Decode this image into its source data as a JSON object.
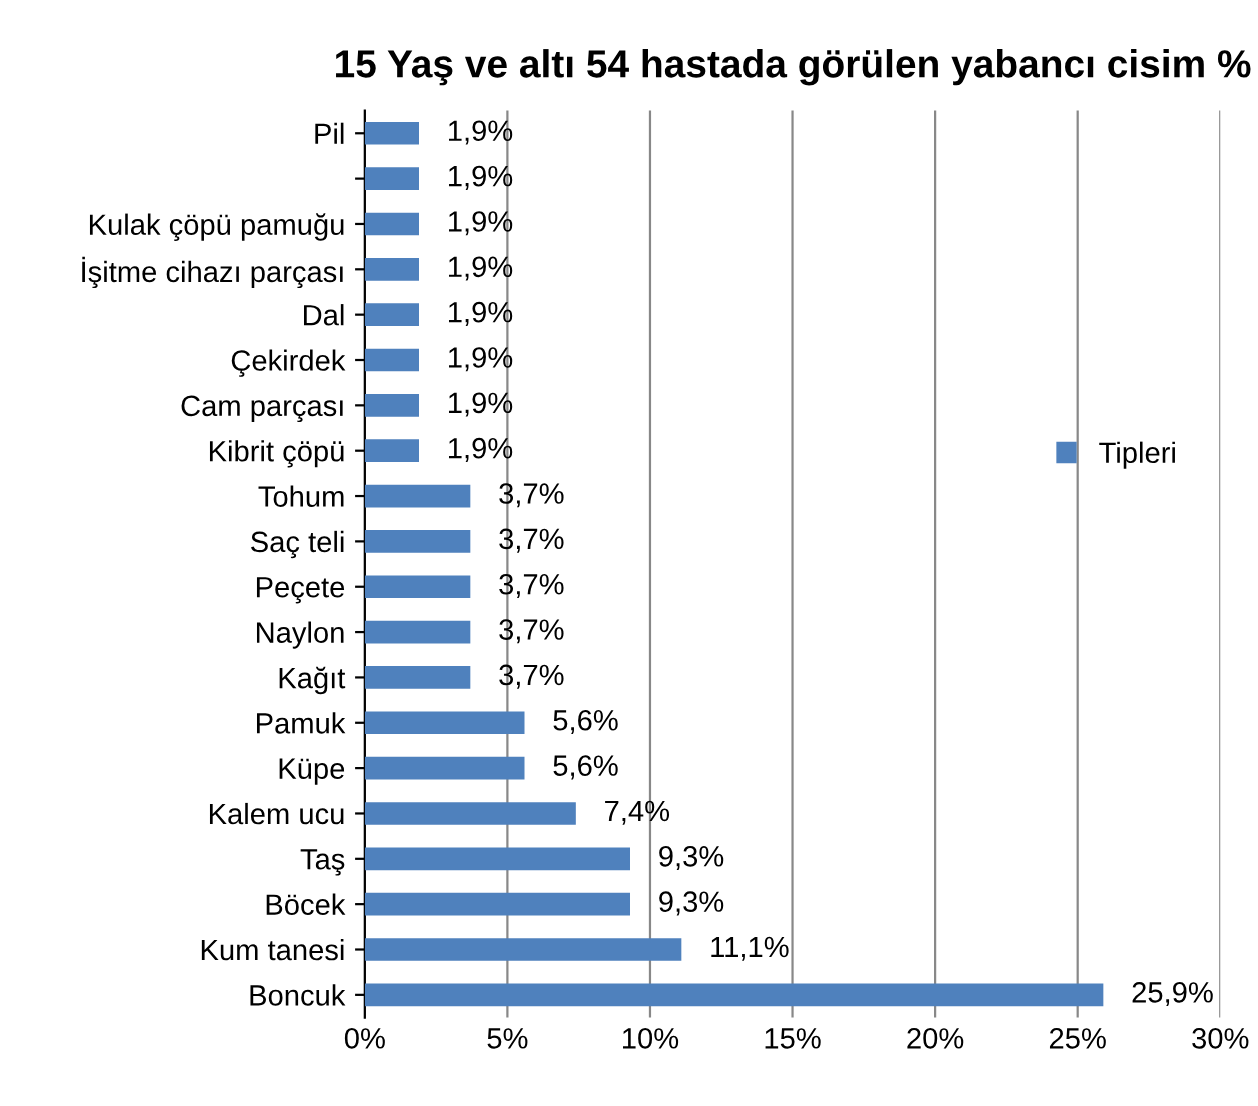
{
  "chart_data": {
    "type": "bar",
    "orientation": "horizontal",
    "title": "15 Yaş ve altı 54 hastada görülen yabancı cisim %",
    "categories": [
      "Pil",
      null,
      "Kulak çöpü pamuğu",
      "İşitme cihazı parçası",
      "Dal",
      "Çekirdek",
      "Cam parçası",
      "Kibrit çöpü",
      "Tohum",
      "Saç teli",
      "Peçete",
      "Naylon",
      "Kağıt",
      "Pamuk",
      "Küpe",
      "Kalem ucu",
      "Taş",
      "Böcek",
      "Kum tanesi",
      "Boncuk"
    ],
    "series": [
      {
        "name": "Tipleri",
        "color": "#4f81bd",
        "values": [
          1.9,
          1.9,
          1.9,
          1.9,
          1.9,
          1.9,
          1.9,
          1.9,
          3.7,
          3.7,
          3.7,
          3.7,
          3.7,
          5.6,
          5.6,
          7.4,
          9.3,
          9.3,
          11.1,
          25.9
        ],
        "value_labels": [
          "1,9%",
          "1,9%",
          "1,9%",
          "1,9%",
          "1,9%",
          "1,9%",
          "1,9%",
          "1,9%",
          "3,7%",
          "3,7%",
          "3,7%",
          "3,7%",
          "3,7%",
          "5,6%",
          "5,6%",
          "7,4%",
          "9,3%",
          "9,3%",
          "11,1%",
          "25,9%"
        ]
      }
    ],
    "xlim": [
      0,
      30
    ],
    "xticks": [
      {
        "value": 0,
        "label": "0%"
      },
      {
        "value": 5,
        "label": "5%"
      },
      {
        "value": 10,
        "label": "10%"
      },
      {
        "value": 15,
        "label": "15%"
      },
      {
        "value": 20,
        "label": "20%"
      },
      {
        "value": 25,
        "label": "25%"
      },
      {
        "value": 30,
        "label": "30%"
      }
    ],
    "grid": "x",
    "legend": "right"
  }
}
